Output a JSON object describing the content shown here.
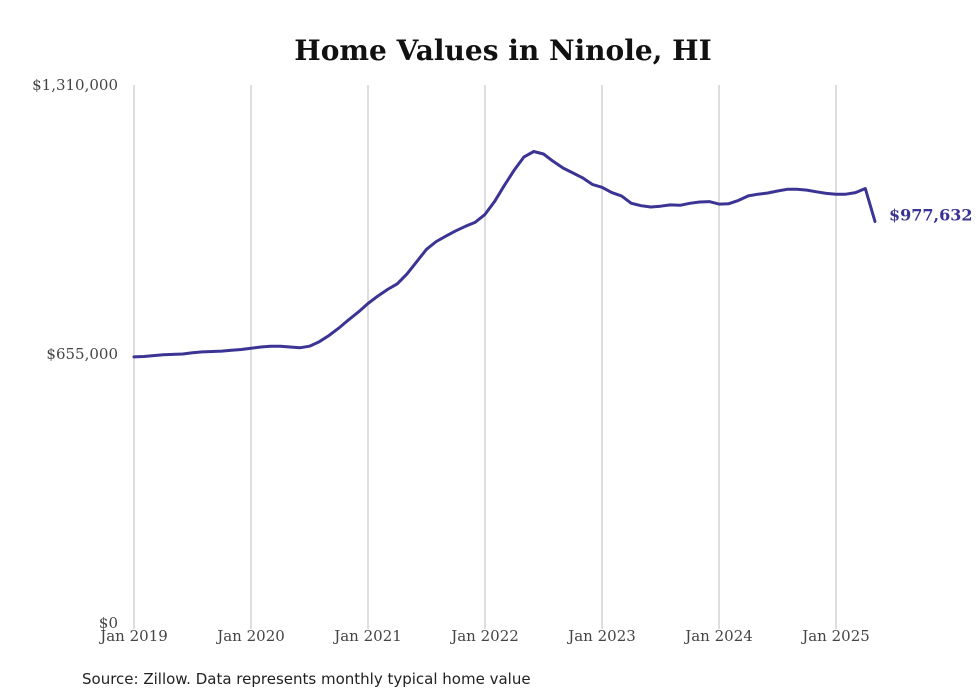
{
  "chart_data": {
    "type": "line",
    "title": "Home Values in Ninole, HI",
    "source": "Source: Zillow. Data represents monthly typical home value",
    "line_color": "#3b3494",
    "grid": "vertical",
    "ylim": [
      0,
      1310000
    ],
    "y_ticks": [
      {
        "value": 0,
        "label": "$0"
      },
      {
        "value": 655000,
        "label": "$655,000"
      },
      {
        "value": 1310000,
        "label": "$1,310,000"
      }
    ],
    "x_ticks": [
      {
        "value": "2019-01",
        "label": "Jan 2019"
      },
      {
        "value": "2020-01",
        "label": "Jan 2020"
      },
      {
        "value": "2021-01",
        "label": "Jan 2021"
      },
      {
        "value": "2022-01",
        "label": "Jan 2022"
      },
      {
        "value": "2023-01",
        "label": "Jan 2023"
      },
      {
        "value": "2024-01",
        "label": "Jan 2024"
      },
      {
        "value": "2025-01",
        "label": "Jan 2025"
      }
    ],
    "end_label": "$977,632",
    "series": [
      {
        "x": [
          "2019-01",
          "2019-02",
          "2019-03",
          "2019-04",
          "2019-05",
          "2019-06",
          "2019-07",
          "2019-08",
          "2019-09",
          "2019-10",
          "2019-11",
          "2019-12",
          "2020-01",
          "2020-02",
          "2020-03",
          "2020-04",
          "2020-05",
          "2020-06",
          "2020-07",
          "2020-08",
          "2020-09",
          "2020-10",
          "2020-11",
          "2020-12",
          "2021-01",
          "2021-02",
          "2021-03",
          "2021-04",
          "2021-05",
          "2021-06",
          "2021-07",
          "2021-08",
          "2021-09",
          "2021-10",
          "2021-11",
          "2021-12",
          "2022-01",
          "2022-02",
          "2022-03",
          "2022-04",
          "2022-05",
          "2022-06",
          "2022-07",
          "2022-08",
          "2022-09",
          "2022-10",
          "2022-11",
          "2022-12",
          "2023-01",
          "2023-02",
          "2023-03",
          "2023-04",
          "2023-05",
          "2023-06",
          "2023-07",
          "2023-08",
          "2023-09",
          "2023-10",
          "2023-11",
          "2023-12",
          "2024-01",
          "2024-02",
          "2024-03",
          "2024-04",
          "2024-05",
          "2024-06",
          "2024-07",
          "2024-08",
          "2024-09",
          "2024-10",
          "2024-11",
          "2024-12",
          "2025-01",
          "2025-02",
          "2025-03",
          "2025-04",
          "2025-05"
        ],
        "values": [
          648000,
          649000,
          651000,
          653000,
          654000,
          655000,
          658000,
          660000,
          661000,
          662000,
          664000,
          666000,
          669000,
          672000,
          674000,
          674000,
          672000,
          670000,
          674000,
          685000,
          700000,
          718000,
          738000,
          757000,
          778000,
          796000,
          812000,
          826000,
          850000,
          880000,
          910000,
          929000,
          942000,
          955000,
          966000,
          976000,
          995000,
          1027000,
          1066000,
          1103000,
          1135000,
          1148000,
          1142000,
          1124000,
          1108000,
          1096000,
          1084000,
          1068000,
          1061000,
          1048000,
          1040000,
          1022000,
          1016000,
          1013000,
          1015000,
          1018000,
          1017000,
          1022000,
          1025000,
          1026000,
          1020000,
          1021000,
          1029000,
          1040000,
          1044000,
          1047000,
          1052000,
          1056000,
          1056000,
          1054000,
          1050000,
          1046000,
          1044000,
          1044000,
          1048000,
          1058000,
          977632
        ]
      }
    ]
  }
}
